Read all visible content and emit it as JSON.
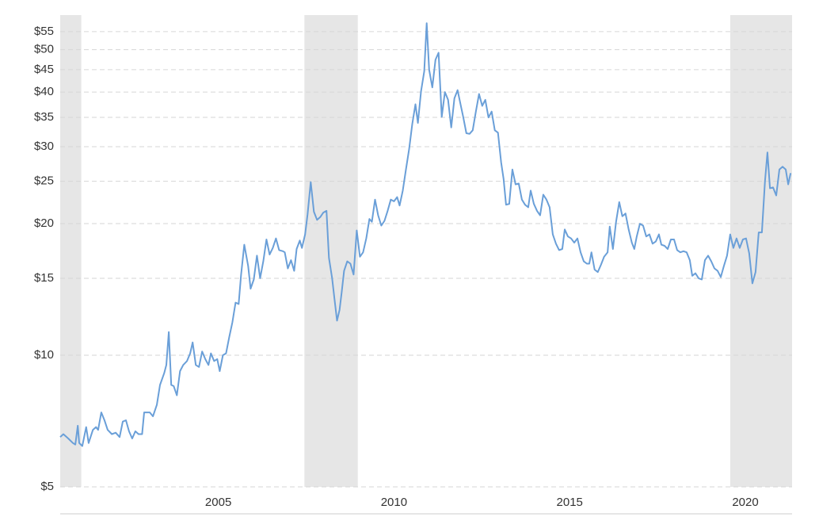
{
  "chart_data": {
    "type": "line",
    "log_scale": true,
    "grid": true,
    "color": "#6a9fd8",
    "shade_color": "#e6e6e6",
    "shaded_ranges": [
      [
        2000.5,
        2001.1
      ],
      [
        2007.45,
        2008.97
      ],
      [
        2019.57,
        2021.33
      ]
    ],
    "xlim": [
      2000.5,
      2021.33
    ],
    "xticks": [
      2005,
      2010,
      2015,
      2020
    ],
    "ylim": [
      5,
      60
    ],
    "yticks": [
      {
        "value": 5,
        "label": "$5"
      },
      {
        "value": 10,
        "label": "$10"
      },
      {
        "value": 15,
        "label": "$15"
      },
      {
        "value": 20,
        "label": "$20"
      },
      {
        "value": 25,
        "label": "$25"
      },
      {
        "value": 30,
        "label": "$30"
      },
      {
        "value": 35,
        "label": "$35"
      },
      {
        "value": 40,
        "label": "$40"
      },
      {
        "value": 45,
        "label": "$45"
      },
      {
        "value": 50,
        "label": "$50"
      },
      {
        "value": 55,
        "label": "$55"
      }
    ],
    "x": [
      2000.5,
      2000.59,
      2000.73,
      2000.86,
      2000.93,
      2001.0,
      2001.04,
      2001.13,
      2001.24,
      2001.31,
      2001.43,
      2001.52,
      2001.58,
      2001.67,
      2001.76,
      2001.85,
      2001.97,
      2002.08,
      2002.19,
      2002.28,
      2002.37,
      2002.46,
      2002.55,
      2002.64,
      2002.73,
      2002.83,
      2002.89,
      2003.05,
      2003.14,
      2003.25,
      2003.34,
      2003.46,
      2003.52,
      2003.59,
      2003.66,
      2003.73,
      2003.82,
      2003.91,
      2004.0,
      2004.11,
      2004.2,
      2004.27,
      2004.36,
      2004.45,
      2004.54,
      2004.63,
      2004.72,
      2004.79,
      2004.88,
      2004.97,
      2005.04,
      2005.13,
      2005.22,
      2005.31,
      2005.4,
      2005.49,
      2005.58,
      2005.65,
      2005.74,
      2005.85,
      2005.92,
      2006.01,
      2006.1,
      2006.19,
      2006.28,
      2006.37,
      2006.46,
      2006.55,
      2006.64,
      2006.73,
      2006.84,
      2006.89,
      2006.98,
      2007.07,
      2007.16,
      2007.23,
      2007.32,
      2007.38,
      2007.47,
      2007.54,
      2007.63,
      2007.72,
      2007.81,
      2007.9,
      2007.99,
      2008.08,
      2008.15,
      2008.24,
      2008.31,
      2008.38,
      2008.45,
      2008.51,
      2008.58,
      2008.67,
      2008.76,
      2008.85,
      2008.94,
      2009.03,
      2009.12,
      2009.21,
      2009.3,
      2009.37,
      2009.46,
      2009.55,
      2009.64,
      2009.73,
      2009.82,
      2009.91,
      2010.0,
      2010.09,
      2010.16,
      2010.25,
      2010.34,
      2010.43,
      2010.52,
      2010.61,
      2010.68,
      2010.77,
      2010.86,
      2010.93,
      2011.0,
      2011.09,
      2011.18,
      2011.27,
      2011.36,
      2011.45,
      2011.54,
      2011.63,
      2011.72,
      2011.81,
      2011.9,
      2011.97,
      2012.06,
      2012.15,
      2012.24,
      2012.33,
      2012.42,
      2012.51,
      2012.6,
      2012.69,
      2012.78,
      2012.87,
      2012.96,
      2013.05,
      2013.12,
      2013.19,
      2013.28,
      2013.37,
      2013.46,
      2013.55,
      2013.64,
      2013.73,
      2013.82,
      2013.89,
      2013.98,
      2014.07,
      2014.16,
      2014.25,
      2014.34,
      2014.43,
      2014.52,
      2014.61,
      2014.7,
      2014.79,
      2014.86,
      2014.95,
      2015.04,
      2015.13,
      2015.22,
      2015.31,
      2015.4,
      2015.49,
      2015.56,
      2015.62,
      2015.71,
      2015.8,
      2015.89,
      2015.98,
      2016.08,
      2016.14,
      2016.23,
      2016.32,
      2016.41,
      2016.5,
      2016.59,
      2016.68,
      2016.77,
      2016.84,
      2016.91,
      2017.0,
      2017.09,
      2017.18,
      2017.27,
      2017.36,
      2017.45,
      2017.54,
      2017.61,
      2017.7,
      2017.79,
      2017.88,
      2017.97,
      2018.06,
      2018.15,
      2018.24,
      2018.33,
      2018.42,
      2018.49,
      2018.58,
      2018.67,
      2018.76,
      2018.85,
      2018.94,
      2019.03,
      2019.12,
      2019.21,
      2019.3,
      2019.39,
      2019.48,
      2019.57,
      2019.66,
      2019.75,
      2019.84,
      2019.93,
      2020.02,
      2020.11,
      2020.2,
      2020.29,
      2020.38,
      2020.47,
      2020.56,
      2020.63,
      2020.7,
      2020.79,
      2020.88,
      2020.97,
      2021.06,
      2021.15,
      2021.22,
      2021.29
    ],
    "values": [
      6.5,
      6.6,
      6.45,
      6.3,
      6.25,
      6.9,
      6.3,
      6.2,
      6.85,
      6.3,
      6.75,
      6.85,
      6.75,
      7.4,
      7.1,
      6.75,
      6.6,
      6.65,
      6.5,
      7.05,
      7.1,
      6.7,
      6.45,
      6.7,
      6.6,
      6.6,
      7.4,
      7.4,
      7.25,
      7.7,
      8.55,
      9.1,
      9.5,
      11.3,
      8.55,
      8.5,
      8.1,
      9.2,
      9.5,
      9.7,
      10.1,
      10.7,
      9.5,
      9.4,
      10.2,
      9.8,
      9.5,
      10.1,
      9.7,
      9.8,
      9.2,
      10.0,
      10.1,
      11.0,
      11.9,
      13.2,
      13.1,
      15.3,
      17.9,
      16.0,
      14.2,
      14.9,
      16.9,
      15.0,
      16.4,
      18.4,
      17.0,
      17.6,
      18.5,
      17.4,
      17.3,
      17.2,
      15.8,
      16.5,
      15.6,
      17.5,
      18.3,
      17.6,
      18.9,
      21.0,
      24.9,
      21.3,
      20.4,
      20.7,
      21.2,
      21.4,
      16.7,
      15.0,
      13.4,
      12.0,
      12.7,
      13.9,
      15.6,
      16.4,
      16.2,
      15.3,
      19.3,
      16.8,
      17.2,
      18.5,
      20.5,
      20.2,
      22.7,
      20.9,
      19.8,
      20.3,
      21.4,
      22.7,
      22.5,
      23.0,
      22.0,
      23.8,
      26.6,
      29.6,
      33.8,
      37.5,
      34.0,
      40.2,
      44.6,
      57.5,
      45.0,
      41.0,
      47.4,
      49.2,
      35.1,
      40.0,
      38.4,
      33.2,
      38.7,
      40.4,
      37.3,
      35.1,
      32.2,
      32.1,
      32.7,
      36.1,
      39.6,
      37.2,
      38.4,
      35.0,
      36.1,
      32.7,
      32.3,
      27.6,
      25.3,
      22.1,
      22.2,
      26.6,
      24.6,
      24.7,
      22.7,
      22.1,
      21.8,
      23.8,
      22.2,
      21.4,
      20.9,
      23.3,
      22.7,
      21.8,
      18.9,
      18.0,
      17.4,
      17.5,
      19.4,
      18.7,
      18.5,
      18.1,
      18.5,
      17.2,
      16.4,
      16.2,
      16.2,
      17.2,
      15.7,
      15.5,
      16.1,
      16.8,
      17.2,
      19.7,
      17.5,
      20.2,
      22.4,
      20.8,
      21.1,
      19.4,
      18.1,
      17.5,
      18.7,
      20.0,
      19.8,
      18.7,
      18.9,
      18.0,
      18.2,
      18.9,
      17.9,
      17.8,
      17.5,
      18.4,
      18.4,
      17.4,
      17.2,
      17.3,
      17.2,
      16.5,
      15.2,
      15.4,
      15.0,
      14.9,
      16.5,
      16.9,
      16.4,
      15.8,
      15.6,
      15.1,
      16.0,
      16.9,
      18.9,
      17.6,
      18.5,
      17.6,
      18.4,
      18.5,
      17.1,
      14.6,
      15.5,
      19.1,
      19.1,
      25.0,
      29.1,
      24.1,
      24.2,
      23.2,
      26.6,
      27.0,
      26.6,
      24.6,
      26.1
    ]
  }
}
